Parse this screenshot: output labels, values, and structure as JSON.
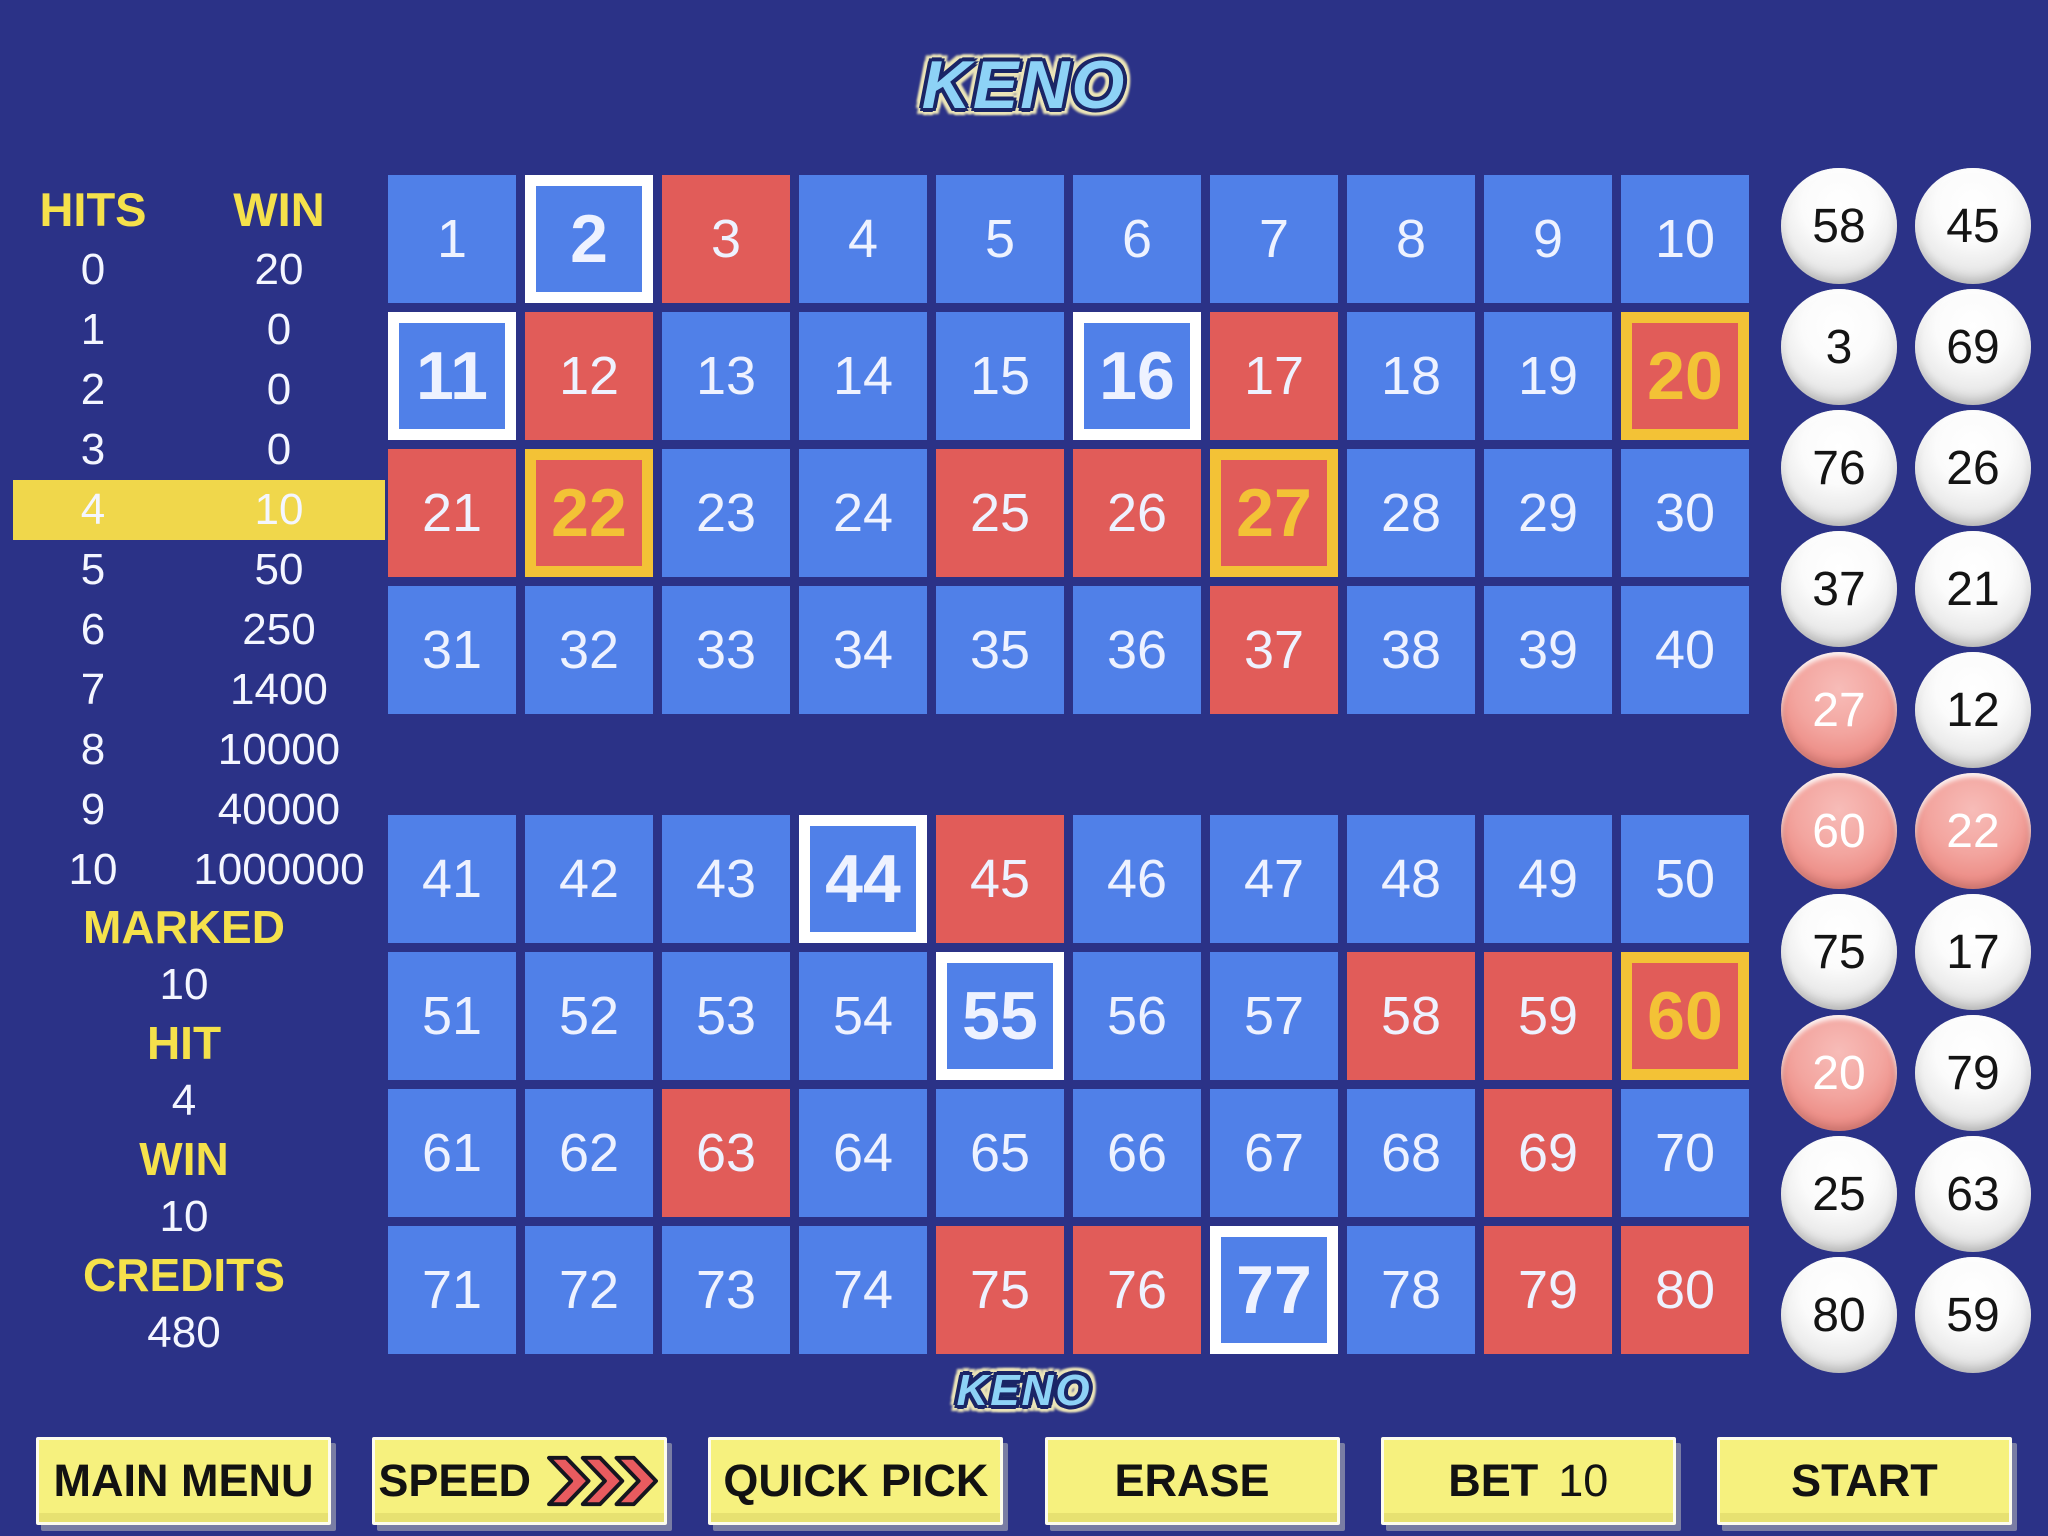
{
  "title": "KENO",
  "title_bottom": "KENO",
  "colors": {
    "background": "#2b3287",
    "cell_blue": "#5080e8",
    "cell_drawn_red": "#e15c59",
    "marked_border_white": "#ffffff",
    "hit_border_gold": "#f3c236",
    "paytable_highlight_yellow": "#f0d74b",
    "label_yellow": "#f5e14b",
    "button_yellow": "#f6f17e",
    "logo_blue": "#8dd2f6",
    "ball_hit_pink": "#ea867f"
  },
  "paytable": {
    "headers": [
      "HITS",
      "WIN"
    ],
    "rows": [
      {
        "hits": "0",
        "win": "20"
      },
      {
        "hits": "1",
        "win": "0"
      },
      {
        "hits": "2",
        "win": "0"
      },
      {
        "hits": "3",
        "win": "0"
      },
      {
        "hits": "4",
        "win": "10"
      },
      {
        "hits": "5",
        "win": "50"
      },
      {
        "hits": "6",
        "win": "250"
      },
      {
        "hits": "7",
        "win": "1400"
      },
      {
        "hits": "8",
        "win": "10000"
      },
      {
        "hits": "9",
        "win": "40000"
      },
      {
        "hits": "10",
        "win": "1000000"
      }
    ],
    "active_hits": "4"
  },
  "stats": [
    {
      "label": "MARKED",
      "value": "10"
    },
    {
      "label": "HIT",
      "value": "4"
    },
    {
      "label": "WIN",
      "value": "10"
    },
    {
      "label": "CREDITS",
      "value": "480"
    }
  ],
  "board": {
    "blocks": [
      {
        "from": 1,
        "to": 40
      },
      {
        "from": 41,
        "to": 80
      }
    ],
    "drawn": [
      3,
      12,
      17,
      20,
      21,
      22,
      25,
      26,
      27,
      37,
      45,
      58,
      59,
      60,
      63,
      69,
      75,
      76,
      79,
      80
    ],
    "marked": [
      2,
      11,
      16,
      20,
      22,
      27,
      44,
      55,
      60,
      77
    ],
    "hits": [
      20,
      22,
      27,
      60
    ]
  },
  "draw_history": {
    "order": [
      58,
      45,
      3,
      69,
      76,
      26,
      37,
      21,
      27,
      12,
      60,
      22,
      75,
      17,
      20,
      79,
      25,
      63,
      80,
      59
    ]
  },
  "controls": {
    "main_menu": "MAIN MENU",
    "speed": "SPEED",
    "quick_pick": "QUICK PICK",
    "erase": "ERASE",
    "bet_label": "BET",
    "bet_value": "10",
    "start": "START"
  }
}
